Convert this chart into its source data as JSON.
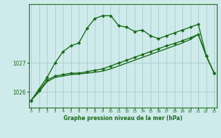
{
  "x": [
    0,
    1,
    2,
    3,
    4,
    5,
    6,
    7,
    8,
    9,
    10,
    11,
    12,
    13,
    14,
    15,
    16,
    17,
    18,
    19,
    20,
    21,
    22,
    23
  ],
  "line1": [
    1025.7,
    1026.1,
    1026.5,
    1027.0,
    1027.4,
    1027.6,
    1027.7,
    1028.2,
    1028.55,
    1028.65,
    1028.65,
    1028.3,
    1028.25,
    1028.1,
    1028.15,
    1027.95,
    1027.85,
    1027.95,
    1028.05,
    1028.15,
    1028.25,
    1028.35,
    1027.25,
    1026.65
  ],
  "line2": [
    1025.7,
    1026.05,
    1026.4,
    1026.55,
    1026.6,
    1026.65,
    1026.65,
    1026.7,
    1026.75,
    1026.8,
    1026.9,
    1027.0,
    1027.1,
    1027.2,
    1027.3,
    1027.4,
    1027.5,
    1027.6,
    1027.68,
    1027.78,
    1027.88,
    1028.0,
    1027.25,
    1026.65
  ],
  "line3": [
    1025.7,
    1026.0,
    1026.35,
    1026.5,
    1026.55,
    1026.6,
    1026.62,
    1026.65,
    1026.68,
    1026.72,
    1026.8,
    1026.9,
    1027.0,
    1027.1,
    1027.2,
    1027.3,
    1027.4,
    1027.5,
    1027.6,
    1027.7,
    1027.82,
    1028.0,
    1027.25,
    1026.65
  ],
  "background_color": "#ceeaea",
  "grid_color": "#aacccc",
  "line_color": "#1a6b1a",
  "ylabel_ticks": [
    1026,
    1027
  ],
  "ylim": [
    1025.45,
    1029.05
  ],
  "xlabel": "Graphe pression niveau de la mer (hPa)",
  "marker": "D",
  "markersize": 2.2,
  "linewidth": 1.0
}
